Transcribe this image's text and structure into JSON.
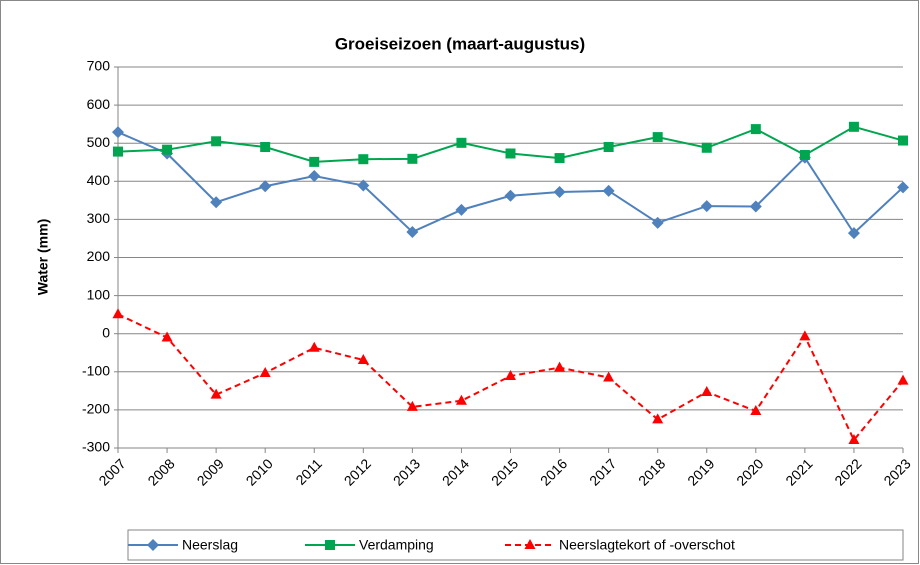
{
  "chart_data": {
    "type": "line",
    "title": "Groeiseizoen (maart-augustus)",
    "y_label": "Water (mm)",
    "categories": [
      "2007",
      "2008",
      "2009",
      "2010",
      "2011",
      "2012",
      "2013",
      "2014",
      "2015",
      "2016",
      "2017",
      "2018",
      "2019",
      "2020",
      "2021",
      "2022",
      "2023"
    ],
    "series": [
      {
        "name": "Neerslag",
        "color": "#4f81bd",
        "marker": "diamond",
        "dashed": false,
        "values": [
          529,
          473,
          345,
          387,
          414,
          389,
          267,
          325,
          362,
          372,
          375,
          291,
          335,
          334,
          462,
          264,
          384
        ]
      },
      {
        "name": "Verdamping",
        "color": "#00a64f",
        "marker": "square",
        "dashed": false,
        "values": [
          478,
          483,
          505,
          490,
          451,
          458,
          459,
          501,
          473,
          461,
          490,
          516,
          488,
          537,
          469,
          543,
          507
        ]
      },
      {
        "name": "Neerslagtekort of -overschot",
        "color": "#ff0000",
        "marker": "triangle",
        "dashed": true,
        "values": [
          51,
          -10,
          -160,
          -103,
          -37,
          -69,
          -192,
          -176,
          -111,
          -89,
          -115,
          -225,
          -153,
          -203,
          -7,
          -279,
          -123
        ]
      }
    ],
    "ylim": [
      -300,
      700
    ],
    "yticks": [
      -300,
      -200,
      -100,
      0,
      100,
      200,
      300,
      400,
      500,
      600,
      700
    ],
    "grid": true,
    "legend": "bottom"
  }
}
